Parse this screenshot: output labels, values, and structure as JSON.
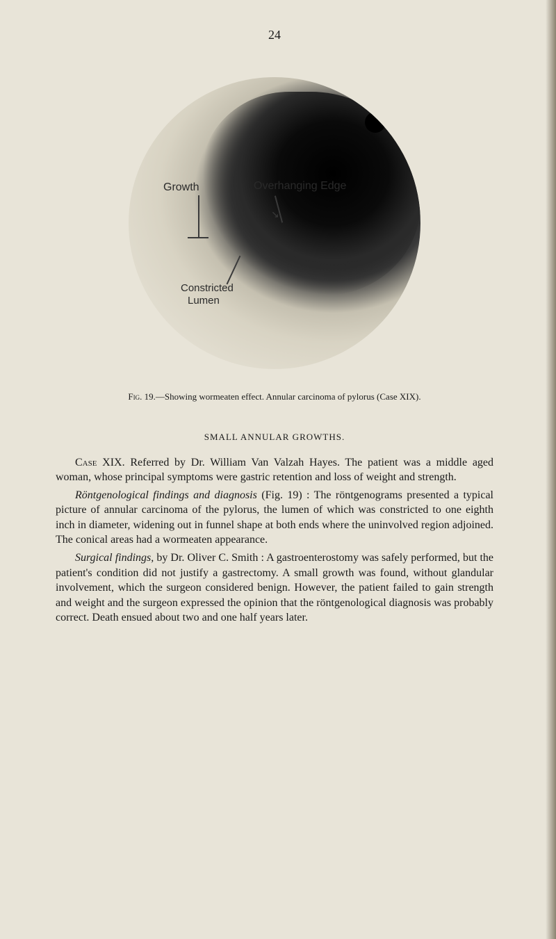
{
  "page": {
    "number": "24",
    "background_color": "#e8e4d8",
    "text_color": "#1a1a1a"
  },
  "figure": {
    "annotations": {
      "growth": "Growth",
      "edge": "Overhanging Edge",
      "constricted": "Constricted",
      "lumen": "Lumen"
    },
    "caption_label": "Fig.",
    "caption_number": "19.",
    "caption_text": "—Showing wormeaten effect. Annular carcinoma of pylorus (Case XIX).",
    "image_colors": {
      "dark": "#0a0a0a",
      "mid": "#3a3a3a",
      "light": "#d8d3c3"
    }
  },
  "section": {
    "heading": "SMALL ANNULAR GROWTHS."
  },
  "paragraphs": {
    "p1_case": "Case XIX.",
    "p1_text": "Referred by Dr. William Van Valzah Hayes. The patient was a middle aged woman, whose principal symptoms were gastric retention and loss of weight and strength.",
    "p2_italic": "Röntgenological findings and diagnosis",
    "p2_text": "(Fig. 19) : The röntgenograms presented a typical picture of annular carcinoma of the pylorus, the lumen of which was constricted to one eighth inch in diameter, widening out in funnel shape at both ends where the uninvolved region adjoined. The conical areas had a wormeaten appearance.",
    "p3_italic": "Surgical findings,",
    "p3_text": "by Dr. Oliver C. Smith : A gastroenterostomy was safely performed, but the patient's condition did not justify a gastrectomy. A small growth was found, without glandular involvement, which the surgeon considered benign. However, the patient failed to gain strength and weight and the surgeon expressed the opinion that the röntgenological diagnosis was probably correct. Death ensued about two and one half years later."
  }
}
